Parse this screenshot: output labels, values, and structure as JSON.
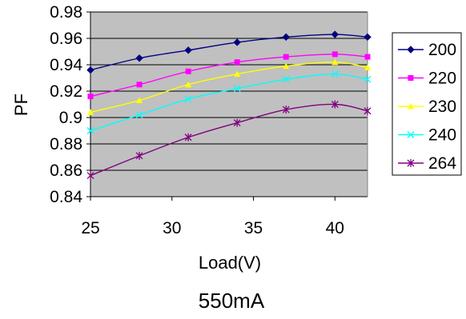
{
  "chart_data": {
    "type": "line",
    "title": "550mA",
    "xlabel": "Load(V)",
    "ylabel": "PF",
    "xlim": [
      25,
      42
    ],
    "ylim": [
      0.84,
      0.98
    ],
    "x_ticks": [
      25,
      30,
      35,
      40
    ],
    "y_ticks": [
      0.84,
      0.86,
      0.88,
      0.9,
      0.92,
      0.94,
      0.96,
      0.98
    ],
    "y_tick_labels": [
      "0.84",
      "0.86",
      "0.88",
      "0.9",
      "0.92",
      "0.94",
      "0.96",
      "0.98"
    ],
    "grid": "horizontal",
    "plot_background": "#c0c0c0",
    "legend_position": "right",
    "x": [
      25,
      28,
      31,
      34,
      37,
      40,
      42
    ],
    "series": [
      {
        "name": "200",
        "color": "#000080",
        "marker": "diamond",
        "values": [
          0.936,
          0.945,
          0.951,
          0.957,
          0.961,
          0.963,
          0.961
        ]
      },
      {
        "name": "220",
        "color": "#ff00ff",
        "marker": "square",
        "values": [
          0.916,
          0.925,
          0.935,
          0.942,
          0.946,
          0.948,
          0.946
        ]
      },
      {
        "name": "230",
        "color": "#ffff00",
        "marker": "triangle",
        "values": [
          0.904,
          0.913,
          0.925,
          0.933,
          0.939,
          0.942,
          0.938
        ]
      },
      {
        "name": "240",
        "color": "#00ffff",
        "marker": "x",
        "values": [
          0.89,
          0.902,
          0.914,
          0.922,
          0.929,
          0.933,
          0.929
        ]
      },
      {
        "name": "264",
        "color": "#800080",
        "marker": "star",
        "values": [
          0.856,
          0.871,
          0.885,
          0.896,
          0.906,
          0.91,
          0.905
        ]
      }
    ]
  }
}
